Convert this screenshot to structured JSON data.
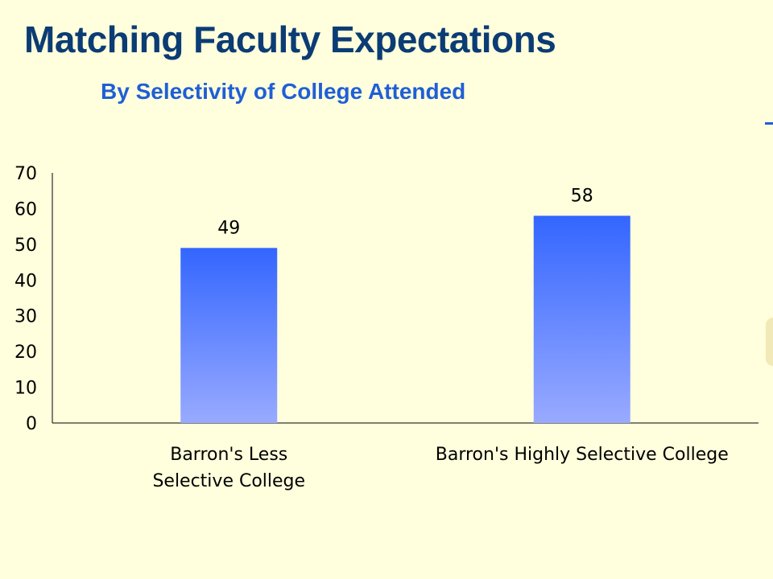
{
  "chart_data": {
    "type": "bar",
    "title": "Matching Faculty Expectations",
    "subtitle": "By Selectivity of College Attended",
    "categories": [
      [
        "Barron's Less",
        "Selective College"
      ],
      [
        "Barron's Highly Selective College"
      ]
    ],
    "values": [
      49,
      58
    ],
    "yticks": [
      "0",
      "10",
      "20",
      "30",
      "40",
      "50",
      "60",
      "70"
    ],
    "ylim": [
      0,
      70
    ],
    "grid": false,
    "legend": "none",
    "colors": {
      "bar_top": "#3366FF",
      "bar_bottom": "#99AAFF",
      "title": "#0B3C74",
      "subtitle": "#1F5FD6",
      "background": "#FFFFDD"
    }
  }
}
